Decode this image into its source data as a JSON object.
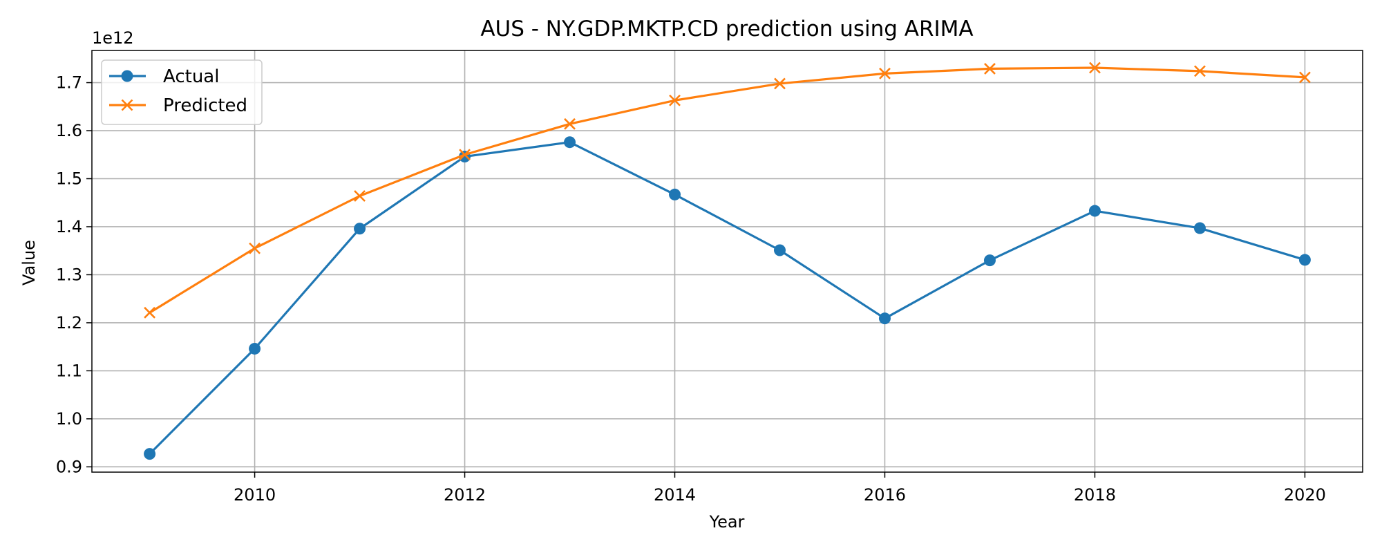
{
  "chart_data": {
    "type": "line",
    "title": "AUS - NY.GDP.MKTP.CD prediction using ARIMA",
    "xlabel": "Year",
    "ylabel": "Value",
    "y_offset_label": "1e12",
    "x": [
      2009,
      2010,
      2011,
      2012,
      2013,
      2014,
      2015,
      2016,
      2017,
      2018,
      2019,
      2020
    ],
    "x_ticks": [
      2010,
      2012,
      2014,
      2016,
      2018,
      2020
    ],
    "y_ticks": [
      0.9,
      1.0,
      1.1,
      1.2,
      1.3,
      1.4,
      1.5,
      1.6,
      1.7
    ],
    "y_tick_labels": [
      "0.9",
      "1.0",
      "1.1",
      "1.2",
      "1.3",
      "1.4",
      "1.5",
      "1.6",
      "1.7"
    ],
    "xlim": [
      2008.45,
      2020.55
    ],
    "ylim": [
      0.889,
      1.767
    ],
    "y_scale_note": "values in units of 1e12",
    "grid": true,
    "legend_position": "top-left",
    "series": [
      {
        "name": "Actual",
        "color": "#1f77b4",
        "marker": "circle",
        "values": [
          0.927,
          1.146,
          1.396,
          1.546,
          1.576,
          1.467,
          1.351,
          1.209,
          1.33,
          1.433,
          1.397,
          1.331
        ]
      },
      {
        "name": "Predicted",
        "color": "#ff7f0e",
        "marker": "x",
        "values": [
          1.221,
          1.355,
          1.464,
          1.55,
          1.614,
          1.663,
          1.698,
          1.719,
          1.729,
          1.731,
          1.724,
          1.711
        ]
      }
    ]
  }
}
